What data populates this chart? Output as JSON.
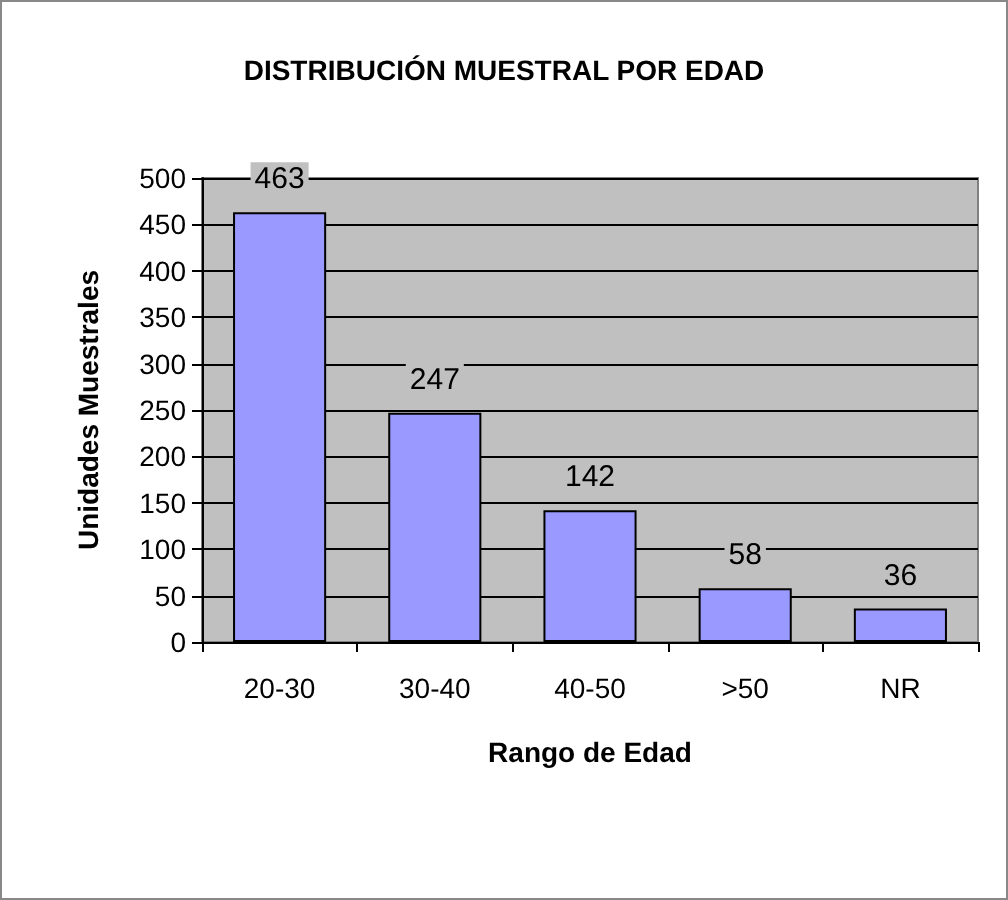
{
  "chart_data": {
    "type": "bar",
    "title": "DISTRIBUCIÓN MUESTRAL POR EDAD",
    "xlabel": "Rango de Edad",
    "ylabel": "Unidades Muestrales",
    "categories": [
      "20-30",
      "30-40",
      "40-50",
      ">50",
      "NR"
    ],
    "values": [
      463,
      247,
      142,
      58,
      36
    ],
    "color": "#9999ff",
    "ylim": [
      0,
      500
    ],
    "yticks": [
      0,
      50,
      100,
      150,
      200,
      250,
      300,
      350,
      400,
      450,
      500
    ],
    "grid": "y",
    "data_labels": true
  }
}
